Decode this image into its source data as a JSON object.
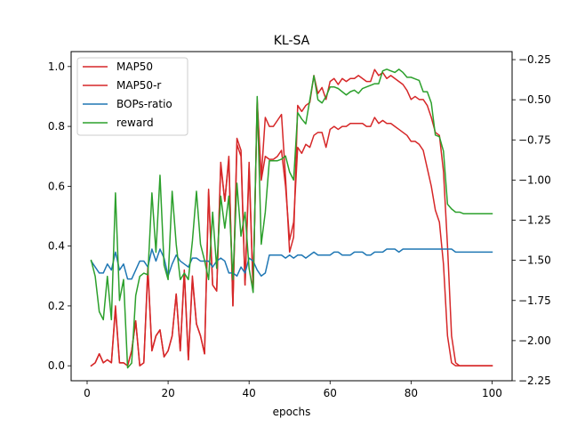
{
  "chart_data": {
    "type": "line",
    "title": "KL-SA",
    "xlabel": "epochs",
    "ylabel": "",
    "y2label": "",
    "xlim": [
      -3.95,
      104.95
    ],
    "ylim": [
      -0.05,
      1.05
    ],
    "y2lim": [
      -2.25,
      -0.2
    ],
    "xticks": [
      0,
      20,
      40,
      60,
      80,
      100
    ],
    "yticks": [
      0.0,
      0.2,
      0.4,
      0.6,
      0.8,
      1.0
    ],
    "y2ticks": [
      -2.25,
      -2.0,
      -1.75,
      -1.5,
      -1.25,
      -1.0,
      -0.75,
      -0.5,
      -0.25
    ],
    "xtick_labels": [
      "0",
      "20",
      "40",
      "60",
      "80",
      "100"
    ],
    "ytick_labels": [
      "0.0",
      "0.2",
      "0.4",
      "0.6",
      "0.8",
      "1.0"
    ],
    "y2tick_labels": [
      "−2.25",
      "−2.00",
      "−1.75",
      "−1.50",
      "−1.25",
      "−1.00",
      "−0.75",
      "−0.50",
      "−0.25"
    ],
    "legend_position": "upper-left",
    "grid": false,
    "series": [
      {
        "name": "MAP50",
        "color": "#d62728",
        "axis": "left",
        "x": [
          1,
          2,
          3,
          4,
          5,
          6,
          7,
          8,
          9,
          10,
          11,
          12,
          13,
          14,
          15,
          16,
          17,
          18,
          19,
          20,
          21,
          22,
          23,
          24,
          25,
          26,
          27,
          28,
          29,
          30,
          31,
          32,
          33,
          34,
          35,
          36,
          37,
          38,
          39,
          40,
          41,
          42,
          43,
          44,
          45,
          46,
          47,
          48,
          49,
          50,
          51,
          52,
          53,
          54,
          55,
          56,
          57,
          58,
          59,
          60,
          61,
          62,
          63,
          64,
          65,
          66,
          67,
          68,
          69,
          70,
          71,
          72,
          73,
          74,
          75,
          76,
          77,
          78,
          79,
          80,
          81,
          82,
          83,
          84,
          85,
          86,
          87,
          88,
          89,
          90,
          91,
          92,
          93,
          94,
          95,
          96,
          97,
          98,
          99,
          100
        ],
        "y": [
          0.0,
          0.01,
          0.04,
          0.01,
          0.02,
          0.01,
          0.2,
          0.01,
          0.01,
          0.0,
          0.05,
          0.15,
          0.0,
          0.01,
          0.33,
          0.05,
          0.1,
          0.12,
          0.03,
          0.05,
          0.1,
          0.24,
          0.05,
          0.32,
          0.02,
          0.3,
          0.14,
          0.1,
          0.04,
          0.59,
          0.27,
          0.25,
          0.68,
          0.55,
          0.7,
          0.2,
          0.76,
          0.72,
          0.27,
          0.68,
          0.25,
          0.89,
          0.63,
          0.83,
          0.8,
          0.8,
          0.82,
          0.84,
          0.63,
          0.38,
          0.43,
          0.87,
          0.85,
          0.87,
          0.88,
          0.97,
          0.91,
          0.93,
          0.89,
          0.95,
          0.96,
          0.94,
          0.96,
          0.95,
          0.96,
          0.96,
          0.97,
          0.96,
          0.95,
          0.95,
          0.99,
          0.97,
          0.98,
          0.96,
          0.97,
          0.96,
          0.95,
          0.94,
          0.92,
          0.89,
          0.9,
          0.89,
          0.89,
          0.87,
          0.83,
          0.78,
          0.77,
          0.65,
          0.4,
          0.1,
          0.01,
          0.0,
          0.0,
          0.0,
          0.0,
          0.0,
          0.0,
          0.0,
          0.0,
          0.0
        ]
      },
      {
        "name": "MAP50-r",
        "color": "#d62728",
        "axis": "left",
        "x": [
          1,
          2,
          3,
          4,
          5,
          6,
          7,
          8,
          9,
          10,
          11,
          12,
          13,
          14,
          15,
          16,
          17,
          18,
          19,
          20,
          21,
          22,
          23,
          24,
          25,
          26,
          27,
          28,
          29,
          30,
          31,
          32,
          33,
          34,
          35,
          36,
          37,
          38,
          39,
          40,
          41,
          42,
          43,
          44,
          45,
          46,
          47,
          48,
          49,
          50,
          51,
          52,
          53,
          54,
          55,
          56,
          57,
          58,
          59,
          60,
          61,
          62,
          63,
          64,
          65,
          66,
          67,
          68,
          69,
          70,
          71,
          72,
          73,
          74,
          75,
          76,
          77,
          78,
          79,
          80,
          81,
          82,
          83,
          84,
          85,
          86,
          87,
          88,
          89,
          90,
          91,
          92,
          93,
          94,
          95,
          96,
          97,
          98,
          99,
          100
        ],
        "y": [
          0.0,
          0.01,
          0.04,
          0.01,
          0.02,
          0.01,
          0.19,
          0.01,
          0.01,
          0.0,
          0.05,
          0.15,
          0.0,
          0.01,
          0.32,
          0.05,
          0.1,
          0.12,
          0.03,
          0.05,
          0.1,
          0.24,
          0.05,
          0.31,
          0.02,
          0.29,
          0.14,
          0.1,
          0.04,
          0.58,
          0.27,
          0.25,
          0.67,
          0.55,
          0.69,
          0.2,
          0.74,
          0.7,
          0.27,
          0.66,
          0.25,
          0.88,
          0.62,
          0.7,
          0.69,
          0.69,
          0.7,
          0.72,
          0.6,
          0.42,
          0.48,
          0.73,
          0.71,
          0.74,
          0.73,
          0.77,
          0.78,
          0.78,
          0.73,
          0.79,
          0.8,
          0.79,
          0.8,
          0.8,
          0.81,
          0.81,
          0.81,
          0.81,
          0.8,
          0.8,
          0.83,
          0.81,
          0.82,
          0.81,
          0.81,
          0.8,
          0.79,
          0.78,
          0.77,
          0.75,
          0.75,
          0.74,
          0.72,
          0.66,
          0.6,
          0.52,
          0.48,
          0.34,
          0.1,
          0.01,
          0.0,
          0.0,
          0.0,
          0.0,
          0.0,
          0.0,
          0.0,
          0.0,
          0.0,
          0.0
        ]
      },
      {
        "name": "BOPs-ratio",
        "color": "#1f77b4",
        "axis": "left",
        "x": [
          1,
          2,
          3,
          4,
          5,
          6,
          7,
          8,
          9,
          10,
          11,
          12,
          13,
          14,
          15,
          16,
          17,
          18,
          19,
          20,
          21,
          22,
          23,
          24,
          25,
          26,
          27,
          28,
          29,
          30,
          31,
          32,
          33,
          34,
          35,
          36,
          37,
          38,
          39,
          40,
          41,
          42,
          43,
          44,
          45,
          46,
          47,
          48,
          49,
          50,
          51,
          52,
          53,
          54,
          55,
          56,
          57,
          58,
          59,
          60,
          61,
          62,
          63,
          64,
          65,
          66,
          67,
          68,
          69,
          70,
          71,
          72,
          73,
          74,
          75,
          76,
          77,
          78,
          79,
          80,
          81,
          82,
          83,
          84,
          85,
          86,
          87,
          88,
          89,
          90,
          91,
          92,
          93,
          94,
          95,
          96,
          97,
          98,
          99,
          100
        ],
        "y": [
          0.35,
          0.33,
          0.31,
          0.31,
          0.34,
          0.32,
          0.38,
          0.32,
          0.34,
          0.29,
          0.29,
          0.32,
          0.35,
          0.35,
          0.33,
          0.39,
          0.35,
          0.39,
          0.36,
          0.3,
          0.34,
          0.37,
          0.35,
          0.34,
          0.33,
          0.36,
          0.36,
          0.35,
          0.35,
          0.35,
          0.33,
          0.35,
          0.36,
          0.35,
          0.31,
          0.31,
          0.3,
          0.33,
          0.31,
          0.36,
          0.35,
          0.32,
          0.3,
          0.31,
          0.37,
          0.37,
          0.37,
          0.37,
          0.36,
          0.37,
          0.36,
          0.37,
          0.37,
          0.36,
          0.37,
          0.38,
          0.37,
          0.37,
          0.37,
          0.37,
          0.38,
          0.38,
          0.37,
          0.37,
          0.37,
          0.38,
          0.38,
          0.38,
          0.37,
          0.37,
          0.38,
          0.38,
          0.38,
          0.39,
          0.39,
          0.39,
          0.38,
          0.39,
          0.39,
          0.39,
          0.39,
          0.39,
          0.39,
          0.39,
          0.39,
          0.39,
          0.39,
          0.39,
          0.39,
          0.39,
          0.38,
          0.38,
          0.38,
          0.38,
          0.38,
          0.38,
          0.38,
          0.38,
          0.38,
          0.38
        ]
      },
      {
        "name": "reward",
        "color": "#2ca02c",
        "axis": "right",
        "x": [
          1,
          2,
          3,
          4,
          5,
          6,
          7,
          8,
          9,
          10,
          11,
          12,
          13,
          14,
          15,
          16,
          17,
          18,
          19,
          20,
          21,
          22,
          23,
          24,
          25,
          26,
          27,
          28,
          29,
          30,
          31,
          32,
          33,
          34,
          35,
          36,
          37,
          38,
          39,
          40,
          41,
          42,
          43,
          44,
          45,
          46,
          47,
          48,
          49,
          50,
          51,
          52,
          53,
          54,
          55,
          56,
          57,
          58,
          59,
          60,
          61,
          62,
          63,
          64,
          65,
          66,
          67,
          68,
          69,
          70,
          71,
          72,
          73,
          74,
          75,
          76,
          77,
          78,
          79,
          80,
          81,
          82,
          83,
          84,
          85,
          86,
          87,
          88,
          89,
          90,
          91,
          92,
          93,
          94,
          95,
          96,
          97,
          98,
          99,
          100
        ],
        "y": [
          -1.5,
          -1.6,
          -1.82,
          -1.87,
          -1.6,
          -1.87,
          -1.08,
          -1.75,
          -1.62,
          -2.17,
          -2.14,
          -1.72,
          -1.6,
          -1.58,
          -1.59,
          -1.08,
          -1.45,
          -0.97,
          -1.53,
          -1.62,
          -1.07,
          -1.4,
          -1.62,
          -1.58,
          -1.62,
          -1.38,
          -1.07,
          -1.4,
          -1.5,
          -1.62,
          -1.2,
          -1.55,
          -1.1,
          -1.3,
          -1.1,
          -1.62,
          -1.02,
          -1.35,
          -1.2,
          -1.55,
          -1.7,
          -0.48,
          -1.4,
          -1.2,
          -0.88,
          -0.88,
          -0.88,
          -0.87,
          -0.85,
          -0.95,
          -1.0,
          -0.58,
          -0.62,
          -0.65,
          -0.5,
          -0.35,
          -0.5,
          -0.52,
          -0.48,
          -0.42,
          -0.42,
          -0.43,
          -0.45,
          -0.47,
          -0.45,
          -0.44,
          -0.46,
          -0.43,
          -0.42,
          -0.41,
          -0.4,
          -0.4,
          -0.32,
          -0.31,
          -0.32,
          -0.33,
          -0.31,
          -0.33,
          -0.36,
          -0.36,
          -0.37,
          -0.38,
          -0.45,
          -0.45,
          -0.52,
          -0.72,
          -0.73,
          -0.82,
          -1.15,
          -1.18,
          -1.2,
          -1.2,
          -1.21,
          -1.21,
          -1.21,
          -1.21,
          -1.21,
          -1.21,
          -1.21,
          -1.21
        ]
      }
    ]
  }
}
